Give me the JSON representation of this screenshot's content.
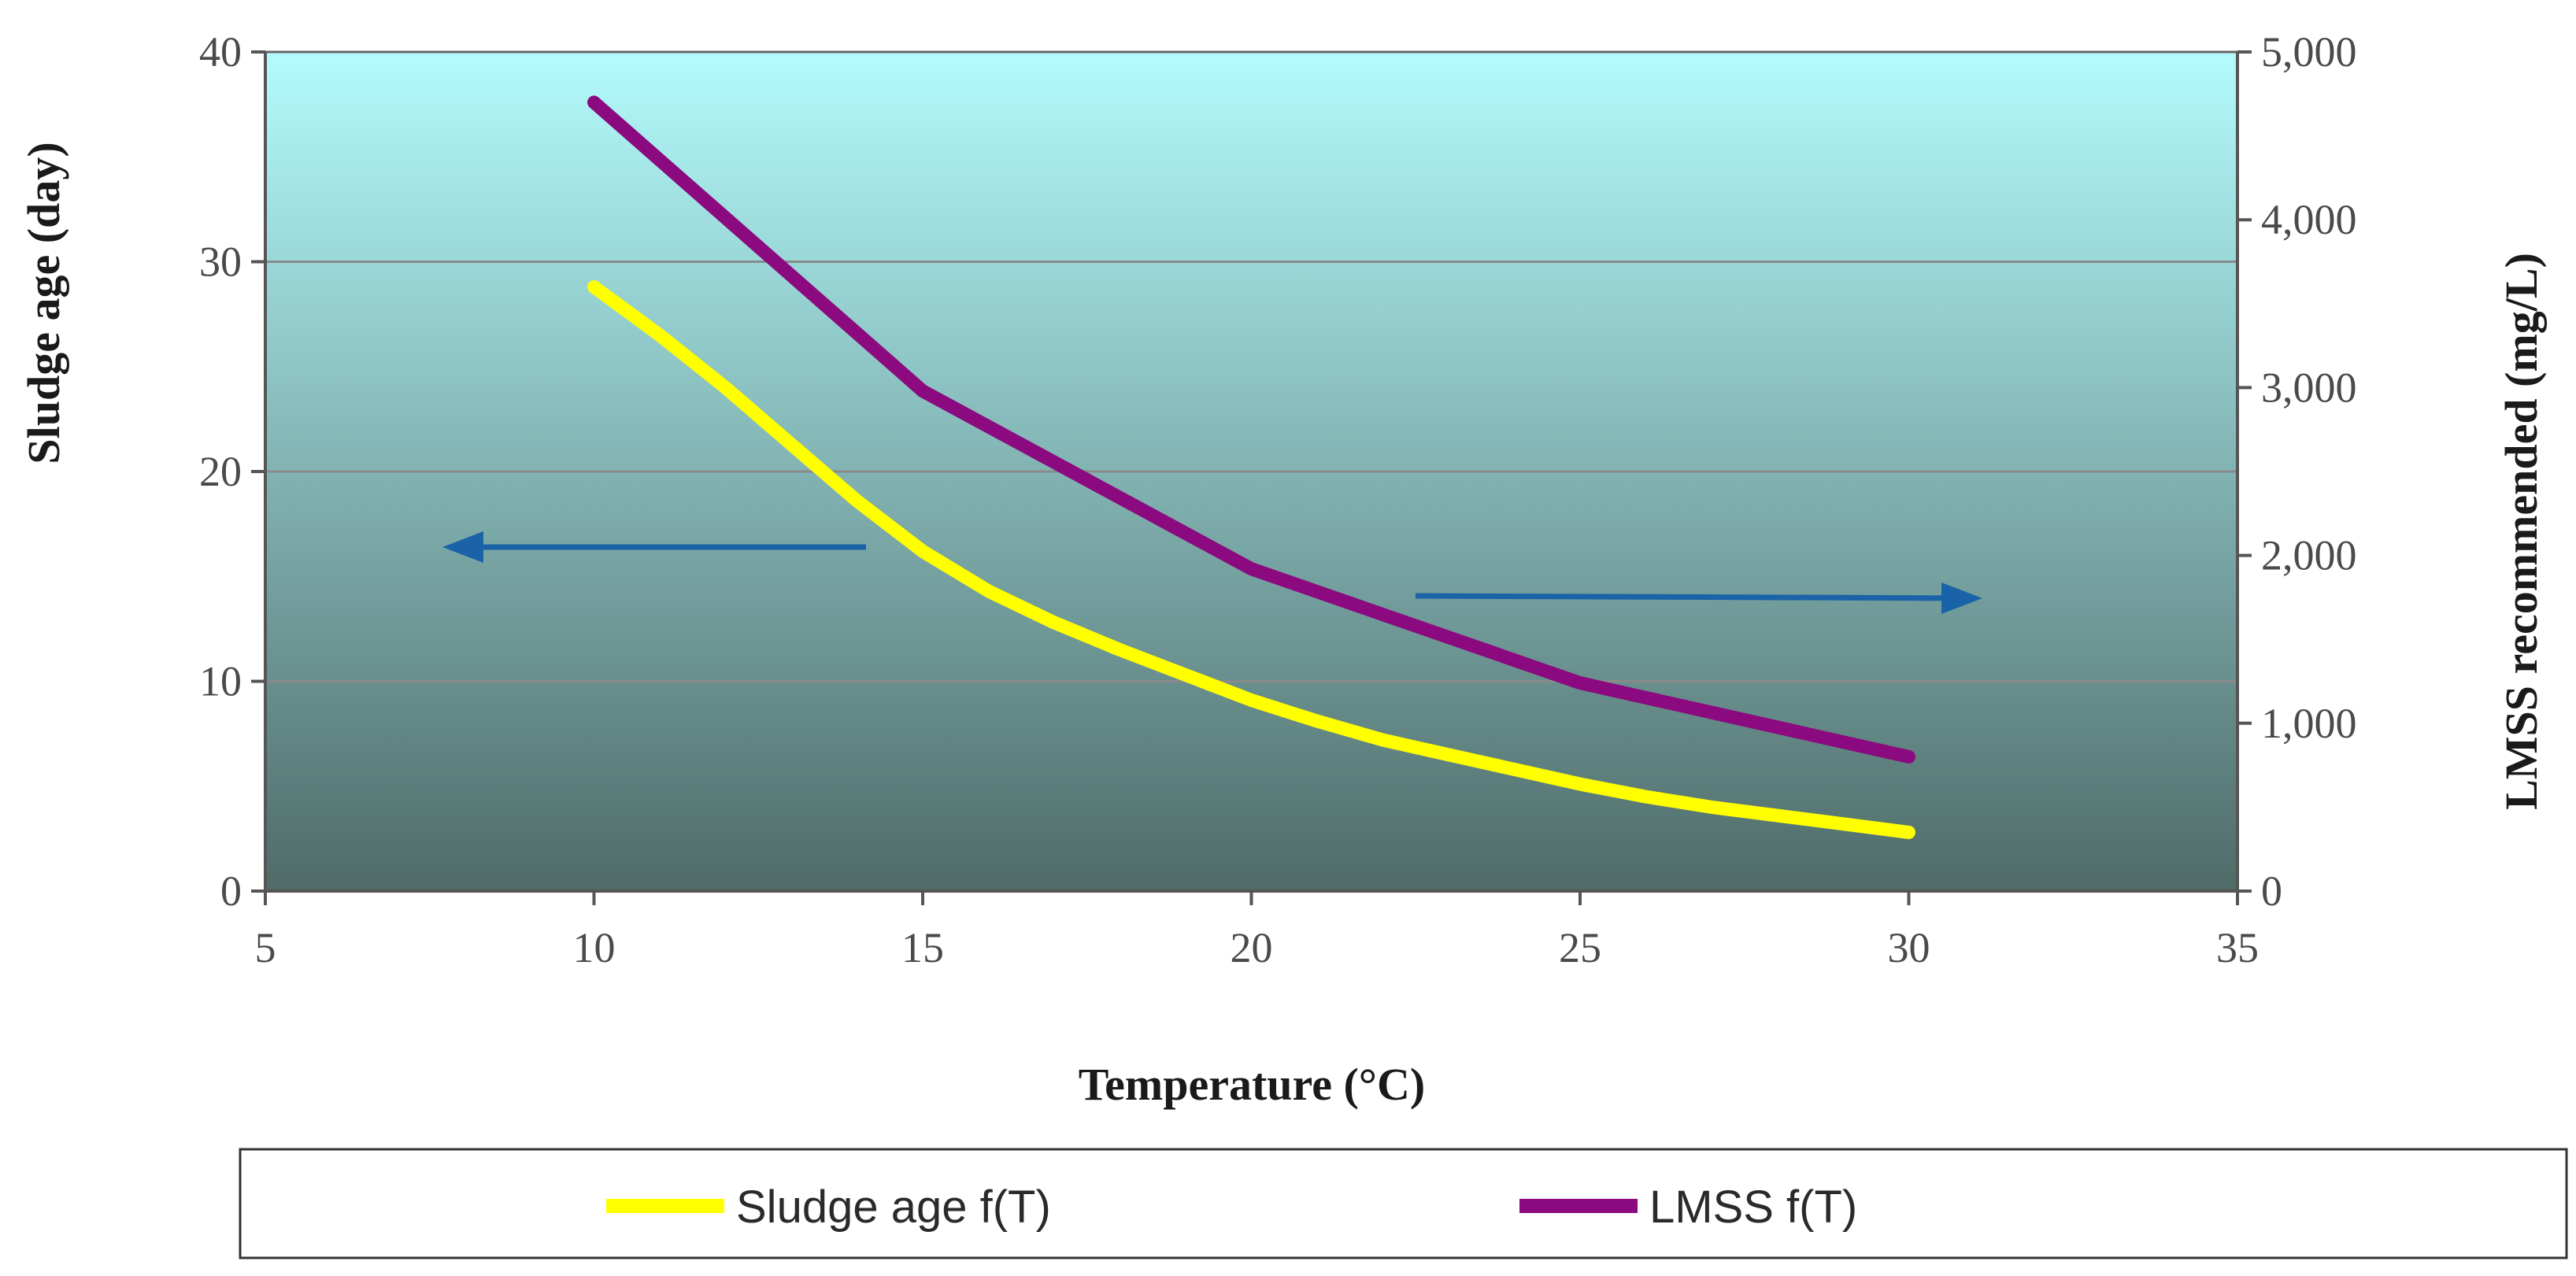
{
  "colors": {
    "bg_top": "#b4fbfd",
    "bg_bottom": "#4f6b68",
    "sludge_line": "#ffff00",
    "lmss_line": "#8b0a7f",
    "arrow": "#1a63a8",
    "gridline": "#8a8a8a",
    "axis": "#555555"
  },
  "chart_data": {
    "type": "line",
    "title": "",
    "xlabel": "Temperature (°C)",
    "ylabel_left": "Sludge age (day)",
    "ylabel_right": "LMSS recommended (mg/L)",
    "xlim": [
      5,
      35
    ],
    "ylim_left": [
      0,
      40
    ],
    "ylim_right": [
      0,
      5000
    ],
    "x_ticks": [
      5,
      10,
      15,
      20,
      25,
      30,
      35
    ],
    "x_tick_labels": [
      "5",
      "10",
      "15",
      "20",
      "25",
      "30",
      "35"
    ],
    "y_left_ticks": [
      0,
      10,
      20,
      30,
      40
    ],
    "y_left_tick_labels": [
      "0",
      "10",
      "20",
      "30",
      "40"
    ],
    "y_right_ticks": [
      0,
      1000,
      2000,
      3000,
      4000,
      5000
    ],
    "y_right_tick_labels": [
      "0",
      "1,000",
      "2,000",
      "3,000",
      "4,000",
      "5,000"
    ],
    "grid": "horizontal",
    "legend_position": "bottom",
    "series": [
      {
        "name": "Sludge age f(T)",
        "axis": "left",
        "x": [
          10,
          11,
          12,
          13,
          14,
          15,
          16,
          17,
          18,
          19,
          20,
          21,
          22,
          23,
          24,
          25,
          26,
          27,
          28,
          29,
          30
        ],
        "values": [
          28.8,
          26.5,
          24.0,
          21.3,
          18.6,
          16.2,
          14.3,
          12.8,
          11.5,
          10.3,
          9.1,
          8.1,
          7.2,
          6.5,
          5.8,
          5.1,
          4.5,
          4.0,
          3.6,
          3.2,
          2.8
        ]
      },
      {
        "name": "LMSS f(T)",
        "axis": "right",
        "x": [
          10,
          15,
          20,
          25,
          30
        ],
        "values": [
          4700,
          2980,
          1920,
          1240,
          800
        ]
      }
    ],
    "annotations": [
      {
        "type": "arrow",
        "direction": "left",
        "meaning": "Sludge age f(T) uses left axis"
      },
      {
        "type": "arrow",
        "direction": "right",
        "meaning": "LMSS f(T) uses right axis"
      }
    ]
  }
}
